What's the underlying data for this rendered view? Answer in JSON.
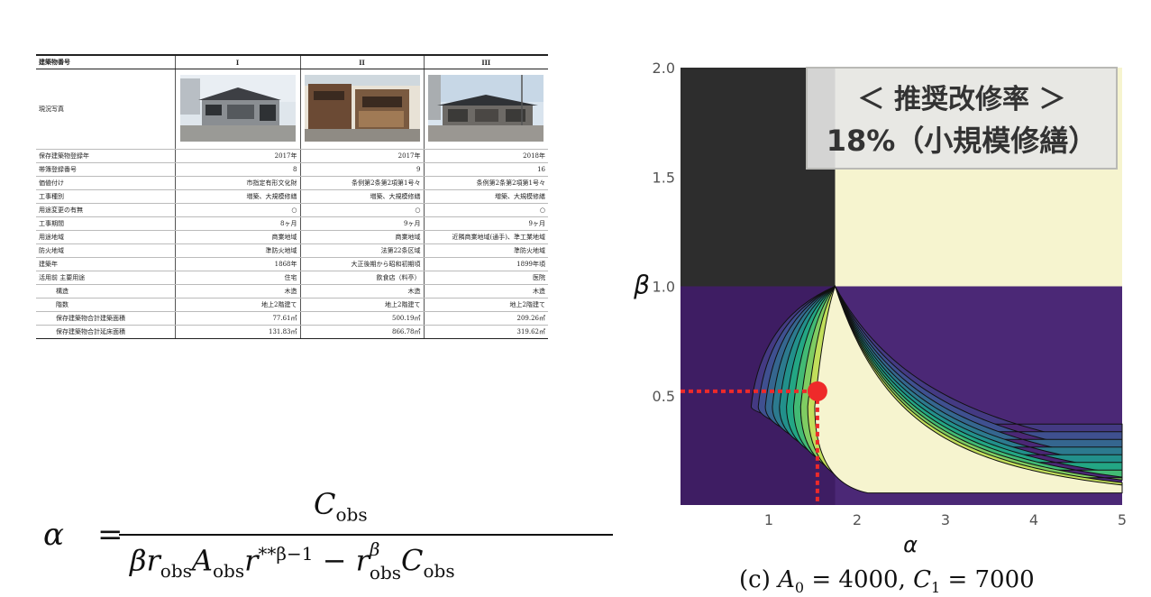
{
  "table": {
    "header": {
      "label": "建築物番号",
      "cols": [
        "I",
        "II",
        "III"
      ]
    },
    "photo_row_label": "現況写真",
    "rows": [
      {
        "label": "保存建築物登録年",
        "v": [
          "2017年",
          "2017年",
          "2018年"
        ],
        "grp": true
      },
      {
        "label": "帯簿登録番号",
        "v": [
          "8",
          "9",
          "16"
        ]
      },
      {
        "label": "価値付け",
        "v": [
          "市指定有形文化財",
          "条例第2条第2項第1号々",
          "条例第2条第2項第1号々"
        ]
      },
      {
        "label": "工事種別",
        "v": [
          "増築、大規模修繕",
          "増築、大規模修繕",
          "増築、大規模修繕"
        ]
      },
      {
        "label": "用途変更の有無",
        "v": [
          "○",
          "○",
          "○"
        ],
        "grp": true
      },
      {
        "label": "工事期間",
        "v": [
          "8ヶ月",
          "9ヶ月",
          "9ヶ月"
        ]
      },
      {
        "label": "用途地域",
        "v": [
          "商業地域",
          "商業地域",
          "近隣商業地域(通手)、準工業地域"
        ]
      },
      {
        "label": "防火地域",
        "v": [
          "準防火地域",
          "法第22条区域",
          "準防火地域"
        ]
      },
      {
        "label": "建築年",
        "v": [
          "1868年",
          "大正後期から昭和初期頃",
          "1899年頃"
        ],
        "grp": true
      },
      {
        "label": "活用前 主要用途",
        "v": [
          "住宅",
          "飲食店（料亭）",
          "医院"
        ]
      },
      {
        "label": "構造",
        "v": [
          "木造",
          "木造",
          "木造"
        ],
        "indent": true
      },
      {
        "label": "階数",
        "v": [
          "地上2階建て",
          "地上2階建て",
          "地上2階建て"
        ],
        "indent": true
      },
      {
        "label": "保存建築物合計建築面積",
        "v": [
          "77.61㎡",
          "500.19㎡",
          "209.26㎡"
        ],
        "indent": true
      },
      {
        "label": "保存建築物合計延床面積",
        "v": [
          "131.83㎡",
          "866.78㎡",
          "319.62㎡"
        ],
        "indent": true,
        "last": true
      }
    ]
  },
  "formula": {
    "lhs": "α",
    "eq": "=",
    "numerator": "C",
    "numerator_sub": "obs",
    "den_beta": "β",
    "den_r": "r",
    "den_r_sub": "obs",
    "den_A": "A",
    "den_A_sub": "obs",
    "den_r2": "r",
    "den_exp": "**β−1",
    "den_minus": "−",
    "den_r3": "r",
    "den_r3_sup": "β",
    "den_r3_sub": "obs",
    "den_C": "C",
    "den_C_sub": "obs"
  },
  "chart_data": {
    "type": "heatmap",
    "xlabel": "α",
    "ylabel": "β",
    "xlim": [
      0,
      5
    ],
    "ylim": [
      0,
      2
    ],
    "xticks": [
      "1",
      "2",
      "3",
      "4",
      "5"
    ],
    "yticks": [
      "0.5",
      "1.0",
      "1.5",
      "2.0"
    ],
    "regions": [
      {
        "name": "dark",
        "x": [
          0,
          1.75
        ],
        "y": [
          1,
          2
        ],
        "color": "#2d2d2d"
      },
      {
        "name": "pale-yellow",
        "x": [
          1.75,
          5
        ],
        "y": [
          1,
          2
        ],
        "color": "#f6f4cf"
      },
      {
        "name": "purple",
        "x": [
          0,
          1.75
        ],
        "y": [
          0,
          1
        ],
        "color": "#3e1d63"
      }
    ],
    "contour_levels": [
      0.6,
      0.95,
      1.35,
      1.8,
      2.3,
      2.85,
      3.45,
      4.1,
      4.8,
      5.6
    ],
    "contour_colors": [
      "#4b2876",
      "#443a83",
      "#3f5090",
      "#35668f",
      "#2c7a8e",
      "#22908b",
      "#23a684",
      "#42ba74",
      "#7fcc62",
      "#c2de5b",
      "#f6f4cf"
    ],
    "apex": [
      1.75,
      1.0
    ],
    "observed_point": {
      "x": 1.55,
      "y": 0.52
    },
    "callout": {
      "line1": "＜ 推奨改修率 ＞",
      "line2": "18%（小規模修繕）"
    },
    "caption": {
      "prefix": "(c) ",
      "A": "A",
      "A_sub": "0",
      "A_val": " = 4000, ",
      "C": "C",
      "C_sub": "1",
      "C_val": " = 7000"
    }
  }
}
